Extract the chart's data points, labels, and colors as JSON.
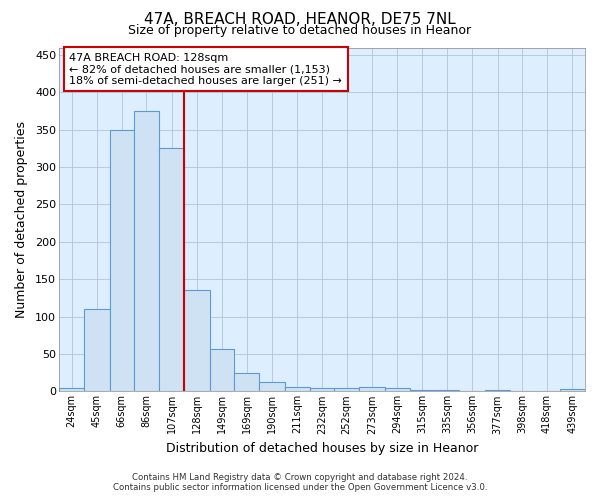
{
  "title": "47A, BREACH ROAD, HEANOR, DE75 7NL",
  "subtitle": "Size of property relative to detached houses in Heanor",
  "xlabel": "Distribution of detached houses by size in Heanor",
  "ylabel": "Number of detached properties",
  "bar_color": "#cfe2f3",
  "bar_edge_color": "#5b9bd5",
  "grid_color": "#b0c4d8",
  "background_color": "#ffffff",
  "plot_bg_color": "#ddeeff",
  "red_line_color": "#cc0000",
  "annotation_text": "47A BREACH ROAD: 128sqm\n← 82% of detached houses are smaller (1,153)\n18% of semi-detached houses are larger (251) →",
  "footer_line1": "Contains HM Land Registry data © Crown copyright and database right 2024.",
  "footer_line2": "Contains public sector information licensed under the Open Government Licence v3.0.",
  "bins": [
    24,
    45,
    66,
    86,
    107,
    128,
    149,
    169,
    190,
    211,
    232,
    252,
    273,
    294,
    315,
    335,
    356,
    377,
    398,
    418,
    439,
    460
  ],
  "counts": [
    5,
    110,
    350,
    375,
    325,
    135,
    57,
    25,
    12,
    6,
    5,
    5,
    6,
    4,
    2,
    2,
    0,
    2,
    0,
    0,
    3
  ],
  "red_line_x": 128,
  "ylim": [
    0,
    460
  ],
  "yticks": [
    0,
    50,
    100,
    150,
    200,
    250,
    300,
    350,
    400,
    450
  ],
  "tick_labels": [
    "24sqm",
    "45sqm",
    "66sqm",
    "86sqm",
    "107sqm",
    "128sqm",
    "149sqm",
    "169sqm",
    "190sqm",
    "211sqm",
    "232sqm",
    "252sqm",
    "273sqm",
    "294sqm",
    "315sqm",
    "335sqm",
    "356sqm",
    "377sqm",
    "398sqm",
    "418sqm",
    "439sqm"
  ]
}
